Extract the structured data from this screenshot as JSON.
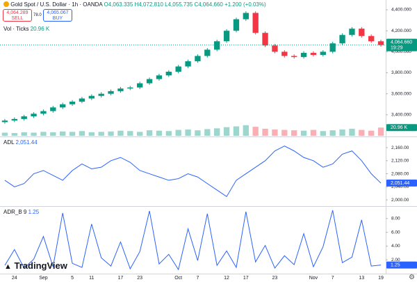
{
  "header": {
    "title": "Gold Spot / U.S. Dollar · 1h · OANDA",
    "open": "O4,063.335",
    "high": "H4,072.810",
    "low": "L4,055.735",
    "close": "C4,064.660",
    "change": "+1.200 (+0.03%)"
  },
  "trade": {
    "sell_price": "4,064.289",
    "sell": "SELL",
    "spread": "78.0",
    "buy_price": "4,065.067",
    "buy": "BUY"
  },
  "logo": "TradingView",
  "chart_data": [
    {
      "type": "candlestick",
      "up_color": "#089981",
      "down_color": "#f23645",
      "categories": [
        null,
        "24",
        null,
        null,
        "Sep",
        null,
        null,
        "5",
        null,
        "11",
        null,
        null,
        "17",
        null,
        "23",
        null,
        null,
        null,
        "Oct",
        null,
        "7",
        null,
        null,
        "12",
        null,
        "17",
        null,
        null,
        "23",
        null,
        null,
        null,
        "Nov",
        null,
        "7",
        null,
        null,
        "13",
        null,
        "19"
      ],
      "open": [
        3330,
        3345,
        3360,
        3385,
        3410,
        3435,
        3470,
        3500,
        3525,
        3555,
        3580,
        3600,
        3625,
        3650,
        3660,
        3700,
        3740,
        3775,
        3810,
        3860,
        3910,
        3960,
        4020,
        4100,
        4200,
        4310,
        4370,
        4180,
        4060,
        4000,
        3960,
        3950,
        3990,
        3970,
        4000,
        4080,
        4160,
        4220,
        4150,
        4100
      ],
      "high": [
        3360,
        3375,
        3400,
        3425,
        3450,
        3485,
        3515,
        3540,
        3570,
        3595,
        3615,
        3640,
        3665,
        3675,
        3715,
        3755,
        3790,
        3825,
        3875,
        3925,
        3975,
        4035,
        4115,
        4215,
        4325,
        4385,
        4385,
        4195,
        4075,
        4015,
        3975,
        4005,
        4005,
        4015,
        4095,
        4175,
        4235,
        4235,
        4165,
        4115
      ],
      "low": [
        3315,
        3330,
        3345,
        3370,
        3395,
        3420,
        3455,
        3485,
        3510,
        3540,
        3565,
        3585,
        3610,
        3635,
        3645,
        3685,
        3725,
        3760,
        3795,
        3845,
        3895,
        3945,
        4005,
        4085,
        4185,
        4295,
        4165,
        4045,
        3985,
        3945,
        3935,
        3935,
        3955,
        3955,
        3985,
        4065,
        4145,
        4135,
        4085,
        4049
      ],
      "close": [
        3345,
        3360,
        3385,
        3410,
        3435,
        3470,
        3500,
        3525,
        3555,
        3580,
        3600,
        3625,
        3650,
        3660,
        3700,
        3740,
        3775,
        3810,
        3860,
        3910,
        3960,
        4020,
        4100,
        4200,
        4310,
        4370,
        4180,
        4060,
        4000,
        3960,
        3950,
        3990,
        3970,
        4000,
        4080,
        4160,
        4220,
        4150,
        4100,
        4064.66
      ],
      "last_label": "4,064.660",
      "last_time": "19:29",
      "ylim": [
        3200,
        4493
      ],
      "yticks": [
        {
          "value": 3400,
          "label": "3,400.000"
        },
        {
          "value": 3600,
          "label": "3,600.000"
        },
        {
          "value": 3800,
          "label": "3,800.000"
        },
        {
          "value": 4000,
          "label": "4,000.000"
        },
        {
          "value": 4200,
          "label": "4,200.000"
        },
        {
          "value": 4400,
          "label": "4,400.000"
        }
      ]
    },
    {
      "type": "bar",
      "title": "Vol · Ticks",
      "legend_value": "20.96 K",
      "values": [
        8,
        7,
        9,
        8,
        10,
        9,
        11,
        10,
        12,
        9,
        10,
        11,
        13,
        12,
        10,
        14,
        13,
        12,
        15,
        16,
        14,
        17,
        19,
        22,
        24,
        27,
        23,
        18,
        16,
        15,
        14,
        13,
        15,
        12,
        14,
        16,
        18,
        15,
        13,
        20.96
      ],
      "last_label": "20.96 K",
      "ylim": [
        0,
        80
      ]
    },
    {
      "type": "line",
      "title": "ADL",
      "legend_value": "2,051.44",
      "color": "#2962ff",
      "values": [
        2060,
        2040,
        2050,
        2080,
        2090,
        2075,
        2060,
        2090,
        2110,
        2095,
        2100,
        2120,
        2130,
        2115,
        2090,
        2080,
        2070,
        2060,
        2065,
        2080,
        2070,
        2050,
        2030,
        2010,
        2060,
        2080,
        2100,
        2120,
        2150,
        2165,
        2150,
        2130,
        2120,
        2100,
        2110,
        2140,
        2150,
        2120,
        2080,
        2051.44
      ],
      "last_label": "2,051.44",
      "ylim": [
        1983,
        2190
      ],
      "yticks": [
        {
          "value": 2000,
          "label": "2,000.00"
        },
        {
          "value": 2040,
          "label": "2,040.00"
        },
        {
          "value": 2080,
          "label": "2,080.00"
        },
        {
          "value": 2120,
          "label": "2,120.00"
        },
        {
          "value": 2160,
          "label": "2,160.00"
        }
      ]
    },
    {
      "type": "line",
      "title": "ADR_B 9",
      "color": "#2962ff",
      "values": [
        1.2,
        3.5,
        0.8,
        2.1,
        5.4,
        1.0,
        8.8,
        1.5,
        0.9,
        7.2,
        2.3,
        1.1,
        4.6,
        0.7,
        3.2,
        9.1,
        1.4,
        2.8,
        0.6,
        6.5,
        1.9,
        8.7,
        1.2,
        3.3,
        0.9,
        9.0,
        1.7,
        4.1,
        0.8,
        2.6,
        1.3,
        5.8,
        1.0,
        3.9,
        9.2,
        1.6,
        2.4,
        7.8,
        1.1,
        1.25
      ],
      "ylim": [
        0,
        9.6
      ],
      "yticks": [
        {
          "value": 2,
          "label": "2.00"
        },
        {
          "value": 4,
          "label": "4.00"
        },
        {
          "value": 6,
          "label": "6.00"
        },
        {
          "value": 8,
          "label": "8.00"
        }
      ]
    }
  ]
}
